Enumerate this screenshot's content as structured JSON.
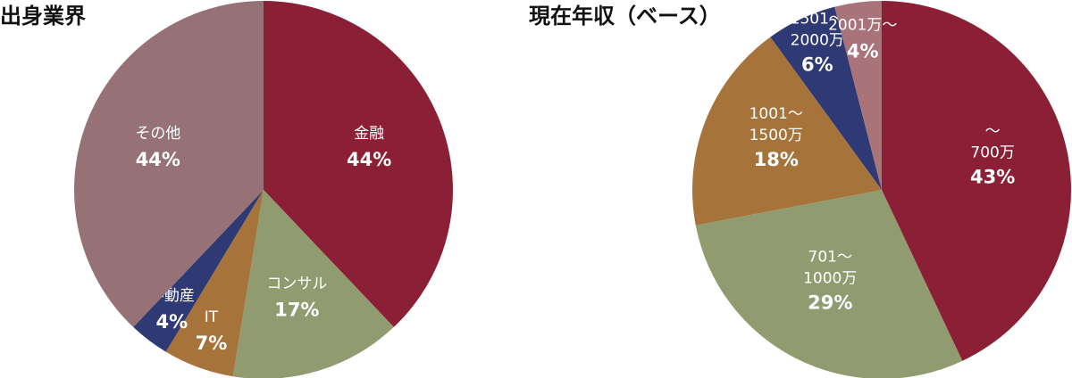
{
  "chart_data": [
    {
      "type": "pie",
      "title": "出身業界",
      "categories": [
        "金融",
        "コンサル",
        "IT",
        "不動産",
        "その他"
      ],
      "values": [
        44,
        17,
        7,
        4,
        44
      ],
      "value_labels": [
        "44%",
        "17%",
        "7%",
        "4%",
        "44%"
      ],
      "colors": [
        "#8b1f36",
        "#909c70",
        "#a6733a",
        "#2f3a74",
        "#967276"
      ]
    },
    {
      "type": "pie",
      "title": "現在年収（ベース）",
      "categories": [
        "～700万",
        "701～1000万",
        "1001～1500万",
        "1501～2000万",
        "2001万～"
      ],
      "values": [
        43,
        29,
        18,
        6,
        4
      ],
      "value_labels": [
        "43%",
        "29%",
        "18%",
        "6%",
        "4%"
      ],
      "colors": [
        "#8b1f36",
        "#909c70",
        "#a6733a",
        "#2f3a74",
        "#a9737a"
      ]
    }
  ]
}
